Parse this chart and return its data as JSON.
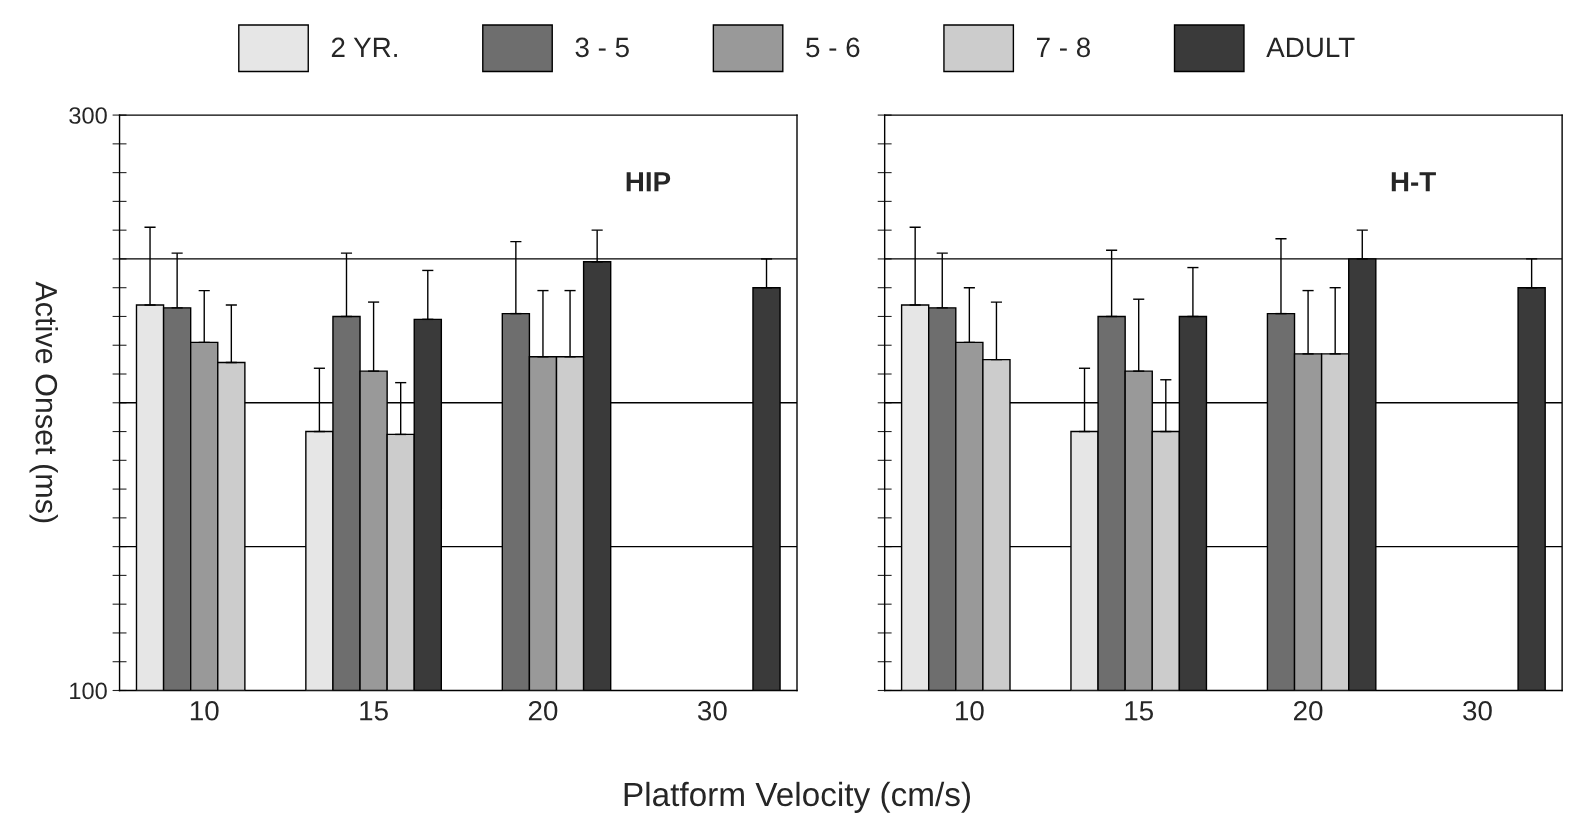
{
  "chart_data": [
    {
      "type": "bar",
      "title": "HIP",
      "xlabel": "Platform Velocity (cm/s)",
      "ylabel": "Active Onset (ms)",
      "categories": [
        "10",
        "15",
        "20",
        "30"
      ],
      "series": [
        {
          "name": "2 YR.",
          "color": "#e6e6e6",
          "values": [
            234,
            190,
            null,
            null
          ],
          "errors": [
            [
              234,
              261
            ],
            [
              190,
              212
            ],
            null,
            null
          ]
        },
        {
          "name": "3 - 5",
          "color": "#6e6e6e",
          "values": [
            233,
            230,
            231,
            null
          ],
          "errors": [
            [
              233,
              252
            ],
            [
              230,
              252
            ],
            [
              231,
              256
            ],
            null
          ]
        },
        {
          "name": "5 - 6",
          "color": "#999999",
          "values": [
            221,
            211,
            216,
            null
          ],
          "errors": [
            [
              221,
              239
            ],
            [
              211,
              235
            ],
            [
              216,
              239
            ],
            null
          ]
        },
        {
          "name": "7 - 8",
          "color": "#cccccc",
          "values": [
            214,
            189,
            216,
            null
          ],
          "errors": [
            [
              214,
              234
            ],
            [
              189,
              207
            ],
            [
              216,
              239
            ],
            null
          ]
        },
        {
          "name": "ADULT",
          "color": "#3a3a3a",
          "values": [
            null,
            229,
            249,
            240
          ],
          "errors": [
            null,
            [
              229,
              246
            ],
            [
              249,
              260
            ],
            [
              240,
              250
            ]
          ]
        }
      ],
      "ylim": [
        100,
        300
      ],
      "yticks": [
        100,
        {
          "value": 110,
          "label": null
        },
        {
          "value": 120,
          "label": null
        },
        {
          "value": 130,
          "label": null
        },
        {
          "value": 140,
          "label": null
        },
        {
          "value": 150,
          "label": null
        },
        {
          "value": 160,
          "label": null
        },
        {
          "value": 170,
          "label": null
        },
        {
          "value": 180,
          "label": null
        },
        {
          "value": 190,
          "label": null
        },
        {
          "value": 200,
          "label": null
        },
        {
          "value": 210,
          "label": null
        },
        {
          "value": 220,
          "label": null
        },
        {
          "value": 230,
          "label": null
        },
        {
          "value": 240,
          "label": null
        },
        {
          "value": 250,
          "label": null
        },
        {
          "value": 260,
          "label": null
        },
        {
          "value": 270,
          "label": null
        },
        {
          "value": 280,
          "label": null
        },
        {
          "value": 290,
          "label": null
        },
        300
      ],
      "ref_lines": [
        {
          "axis": "y",
          "value": 150
        },
        {
          "axis": "y",
          "value": 200
        },
        {
          "axis": "y",
          "value": 250
        }
      ],
      "legend": "top"
    },
    {
      "type": "bar",
      "title": "H-T",
      "categories": [
        "10",
        "15",
        "20",
        "30"
      ],
      "series": [
        {
          "color": "#e6e6e6",
          "values": [
            234,
            190,
            null,
            null
          ],
          "errors": [
            [
              234,
              261
            ],
            [
              190,
              212
            ],
            null,
            null
          ]
        },
        {
          "color": "#6e6e6e",
          "values": [
            233,
            230,
            231,
            null
          ],
          "errors": [
            [
              233,
              252
            ],
            [
              230,
              253
            ],
            [
              231,
              257
            ],
            null
          ]
        },
        {
          "color": "#999999",
          "values": [
            221,
            211,
            217,
            null
          ],
          "errors": [
            [
              221,
              240
            ],
            [
              211,
              236
            ],
            [
              217,
              239
            ],
            null
          ]
        },
        {
          "color": "#cccccc",
          "values": [
            215,
            190,
            217,
            null
          ],
          "errors": [
            [
              215,
              235
            ],
            [
              190,
              208
            ],
            [
              217,
              240
            ],
            null
          ]
        },
        {
          "color": "#3a3a3a",
          "values": [
            null,
            230,
            250,
            240
          ],
          "errors": [
            null,
            [
              230,
              247
            ],
            [
              250,
              260
            ],
            [
              240,
              250
            ]
          ]
        }
      ],
      "ylim": [
        100,
        300
      ],
      "yticks": [
        100,
        {
          "value": 110,
          "label": null
        },
        {
          "value": 120,
          "label": null
        },
        {
          "value": 130,
          "label": null
        },
        {
          "value": 140,
          "label": null
        },
        {
          "value": 150,
          "label": null
        },
        {
          "value": 160,
          "label": null
        },
        {
          "value": 170,
          "label": null
        },
        {
          "value": 180,
          "label": null
        },
        {
          "value": 190,
          "label": null
        },
        {
          "value": 200,
          "label": null
        },
        {
          "value": 210,
          "label": null
        },
        {
          "value": 220,
          "label": null
        },
        {
          "value": 230,
          "label": null
        },
        {
          "value": 240,
          "label": null
        },
        {
          "value": 250,
          "label": null
        },
        {
          "value": 260,
          "label": null
        },
        {
          "value": 270,
          "label": null
        },
        {
          "value": 280,
          "label": null
        },
        {
          "value": 290,
          "label": null
        },
        300
      ],
      "ref_lines": [
        {
          "axis": "y",
          "value": 150
        },
        {
          "axis": "y",
          "value": 200
        },
        {
          "axis": "y",
          "value": 250
        }
      ],
      "tick_labels": "x"
    }
  ]
}
